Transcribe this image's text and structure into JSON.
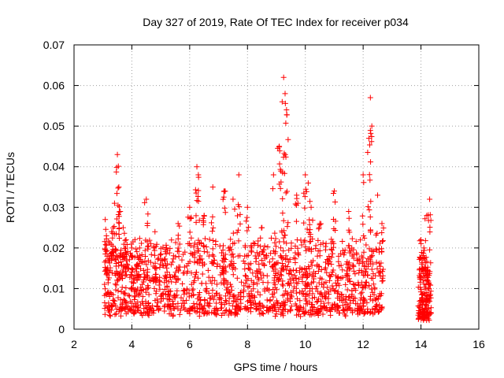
{
  "chart_data": {
    "type": "scatter",
    "title": "Day 327 of 2019, Rate Of TEC Index for receiver p034",
    "xlabel": "GPS time / hours",
    "ylabel": "ROTI / TECUs",
    "xlim": [
      2,
      16
    ],
    "ylim": [
      0,
      0.07
    ],
    "xticks": [
      2,
      4,
      6,
      8,
      10,
      12,
      14,
      16
    ],
    "yticks": [
      0,
      0.01,
      0.02,
      0.03,
      0.04,
      0.05,
      0.06,
      0.07
    ],
    "xtick_labels": [
      "2",
      "4",
      "6",
      "8",
      "10",
      "12",
      "14",
      "16"
    ],
    "ytick_labels": [
      "0",
      "0.01",
      "0.02",
      "0.03",
      "0.04",
      "0.05",
      "0.06",
      "0.07"
    ],
    "grid": true,
    "marker": "+",
    "color": "#ff0000",
    "series": [
      {
        "name": "ROTI",
        "segments": [
          {
            "x_range": [
              3.05,
              12.7
            ],
            "base_range": [
              0.004,
              0.022
            ]
          },
          {
            "x_range": [
              13.9,
              14.35
            ],
            "base_range": [
              0.003,
              0.018
            ]
          }
        ],
        "x": [
          3.08,
          3.12,
          3.2,
          3.3,
          3.4,
          3.5,
          3.55,
          3.6,
          3.7,
          3.8,
          4.0,
          4.2,
          4.5,
          4.8,
          5.2,
          5.6,
          6.0,
          6.25,
          6.3,
          6.5,
          6.8,
          7.2,
          7.5,
          7.7,
          8.0,
          8.5,
          8.9,
          9.1,
          9.2,
          9.25,
          9.3,
          9.35,
          9.7,
          10.0,
          10.1,
          10.2,
          10.5,
          11.0,
          11.5,
          12.0,
          12.2,
          12.25,
          12.3,
          12.5,
          12.65,
          14.0,
          14.1,
          14.2,
          14.3
        ],
        "y": [
          0.027,
          0.023,
          0.018,
          0.024,
          0.031,
          0.043,
          0.035,
          0.029,
          0.025,
          0.022,
          0.02,
          0.018,
          0.032,
          0.024,
          0.02,
          0.026,
          0.03,
          0.04,
          0.038,
          0.028,
          0.035,
          0.034,
          0.032,
          0.038,
          0.03,
          0.025,
          0.038,
          0.045,
          0.056,
          0.062,
          0.058,
          0.054,
          0.033,
          0.038,
          0.036,
          0.03,
          0.026,
          0.034,
          0.029,
          0.038,
          0.047,
          0.057,
          0.05,
          0.033,
          0.026,
          0.022,
          0.02,
          0.028,
          0.032
        ]
      }
    ]
  }
}
